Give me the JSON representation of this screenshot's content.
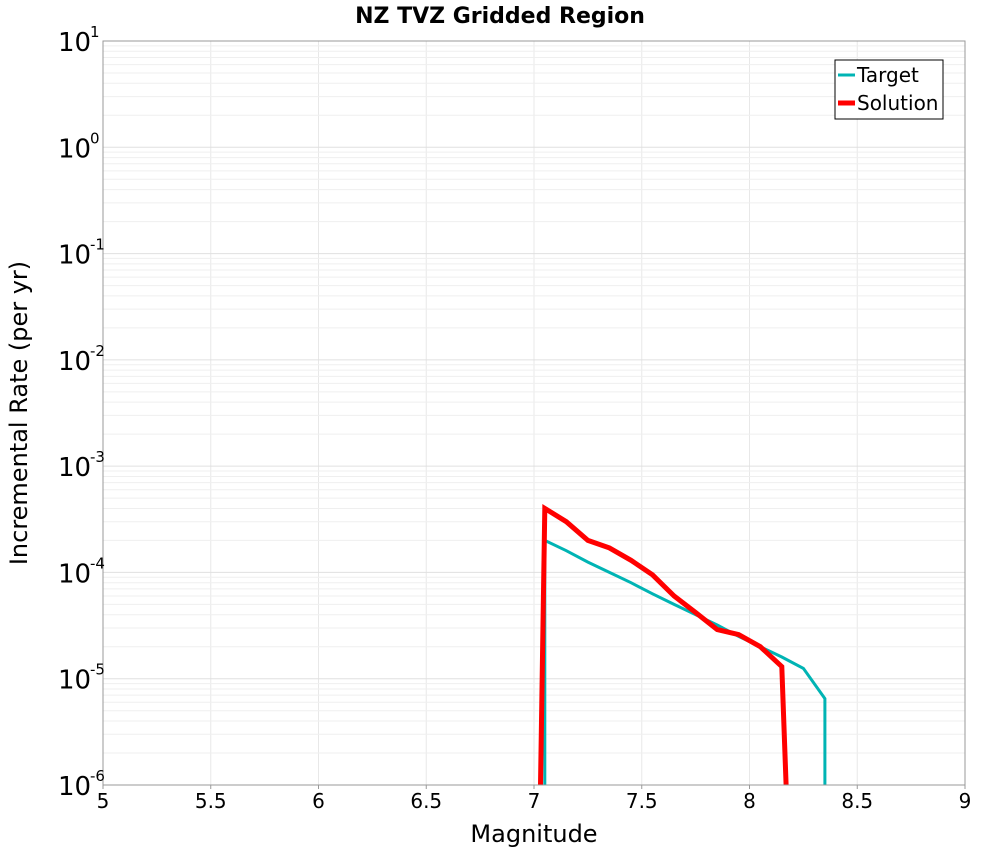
{
  "chart_data": {
    "type": "line",
    "title": "NZ TVZ Gridded Region",
    "xlabel": "Magnitude",
    "ylabel": "Incremental Rate (per yr)",
    "xlim": [
      5,
      9
    ],
    "ylim": [
      1e-06,
      10
    ],
    "yscale": "log",
    "grid": true,
    "legend_position": "top-right",
    "x_ticks": [
      "5",
      "5.5",
      "6",
      "6.5",
      "7",
      "7.5",
      "8",
      "8.5",
      "9"
    ],
    "y_ticks": [
      {
        "base": "10",
        "exp": "1",
        "value": 10
      },
      {
        "base": "10",
        "exp": "0",
        "value": 1
      },
      {
        "base": "10",
        "exp": "-1",
        "value": 0.1
      },
      {
        "base": "10",
        "exp": "-2",
        "value": 0.01
      },
      {
        "base": "10",
        "exp": "-3",
        "value": 0.001
      },
      {
        "base": "10",
        "exp": "-4",
        "value": 0.0001
      },
      {
        "base": "10",
        "exp": "-5",
        "value": 1e-05
      },
      {
        "base": "10",
        "exp": "-6",
        "value": 1e-06
      }
    ],
    "series": [
      {
        "name": "Target",
        "color": "#00b4b4",
        "x": [
          7.05,
          7.05,
          7.15,
          7.25,
          7.35,
          7.45,
          7.55,
          7.65,
          7.75,
          7.85,
          7.95,
          8.05,
          8.15,
          8.25,
          8.35,
          8.35
        ],
        "y": [
          1e-06,
          0.0002,
          0.00016,
          0.000125,
          0.0001,
          8e-05,
          6.3e-05,
          5e-05,
          4e-05,
          3.2e-05,
          2.5e-05,
          2e-05,
          1.6e-05,
          1.25e-05,
          6.5e-06,
          1e-06
        ]
      },
      {
        "name": "Solution",
        "color": "#ff0000",
        "x": [
          7.03,
          7.05,
          7.15,
          7.25,
          7.35,
          7.45,
          7.55,
          7.65,
          7.75,
          7.85,
          7.95,
          8.05,
          8.15,
          8.17
        ],
        "y": [
          1e-06,
          0.0004,
          0.0003,
          0.0002,
          0.00017,
          0.00013,
          9.5e-05,
          6e-05,
          4.2e-05,
          2.9e-05,
          2.6e-05,
          2e-05,
          1.3e-05,
          1e-06
        ]
      }
    ]
  }
}
